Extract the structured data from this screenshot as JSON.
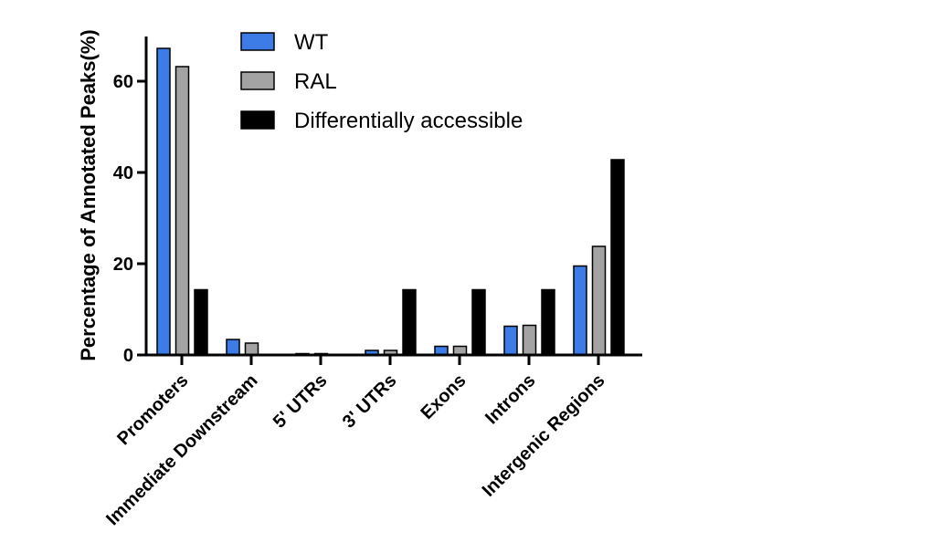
{
  "chart_data": {
    "type": "bar",
    "ylabel": "Percentage of Annotated Peaks(%)",
    "xlabel": "",
    "ylim": [
      0,
      70
    ],
    "yticks": [
      0,
      20,
      40,
      60
    ],
    "categories": [
      "Promoters",
      "Immediate Downstream",
      "5' UTRs",
      "3' UTRs",
      "Exons",
      "Introns",
      "Intergenic Regions"
    ],
    "series": [
      {
        "name": "WT",
        "color": "#3d7be6",
        "values": [
          67.2,
          3.4,
          0.3,
          1.0,
          1.9,
          6.3,
          19.5
        ]
      },
      {
        "name": "RAL",
        "color": "#a3a3a3",
        "values": [
          63.2,
          2.6,
          0.3,
          1.0,
          1.9,
          6.5,
          23.8
        ]
      },
      {
        "name": "Differentially accessible",
        "color": "#000000",
        "values": [
          14.3,
          0,
          0,
          14.3,
          14.3,
          14.3,
          42.8
        ]
      }
    ],
    "legend_position": "top-center",
    "grid": false
  }
}
